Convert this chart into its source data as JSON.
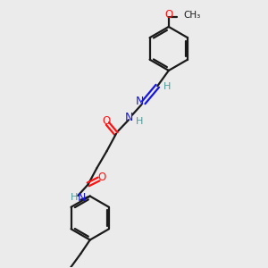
{
  "bg_color": "#ebebeb",
  "bond_color": "#1a1a1a",
  "N_color": "#1515e0",
  "O_color": "#ff1010",
  "H_color": "#4a9a9a",
  "lw": 1.6,
  "fig_w": 3.0,
  "fig_h": 3.0,
  "dpi": 100,
  "xlim": [
    0,
    10
  ],
  "ylim": [
    0,
    10
  ]
}
